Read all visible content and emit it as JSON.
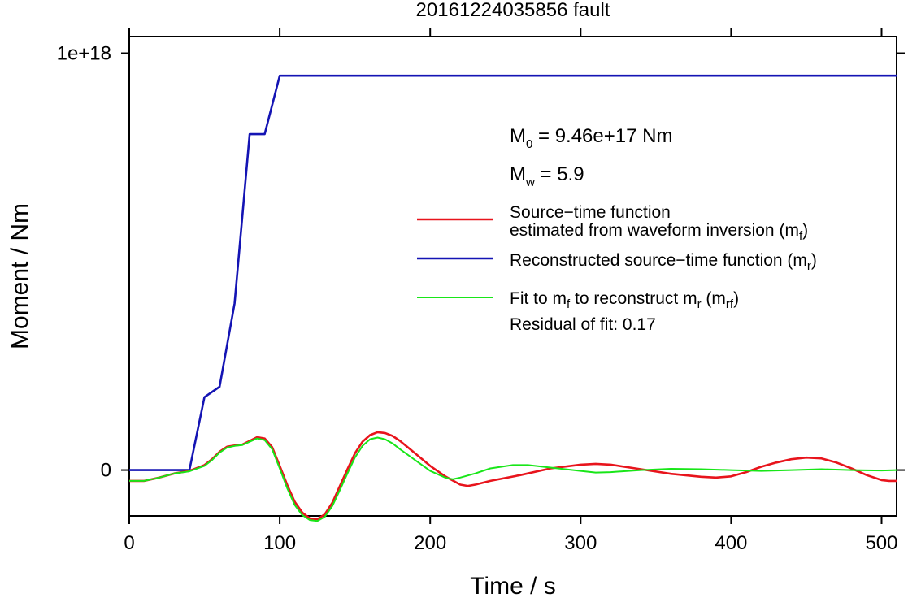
{
  "chart_data": {
    "type": "line",
    "title": "20161224035856 fault",
    "xlabel": "Time / s",
    "ylabel": "Moment / Nm",
    "xlim": [
      0,
      510
    ],
    "ylim": [
      -1.1e+17,
      1.04e+18
    ],
    "x_ticks": [
      0,
      100,
      200,
      300,
      400,
      500
    ],
    "y_ticks": [
      0,
      1e+18
    ],
    "x_tick_labels": [
      "0",
      "100",
      "200",
      "300",
      "400",
      "500"
    ],
    "y_tick_labels": [
      "0",
      "1e+18"
    ],
    "grid": false,
    "legend_position": "right",
    "annotations": {
      "m0": {
        "main": "M",
        "sub": "0",
        "rest": " = 9.46e+17 Nm"
      },
      "mw": {
        "main": "M",
        "sub": "w",
        "rest": " = 5.9"
      },
      "residual": "Residual of fit: 0.17"
    },
    "series": [
      {
        "id": "mf",
        "color": "#e8141c",
        "legend": {
          "line1": "Source−time function",
          "line2_pre": "estimated from waveform inversion (m",
          "line2_sub": "f",
          "line2_post": ")"
        },
        "points": [
          [
            0,
            -2.6e+16
          ],
          [
            10,
            -2.6e+16
          ],
          [
            20,
            -1.8e+16
          ],
          [
            30,
            -8000000000000000.0
          ],
          [
            40,
            -2000000000000000.0
          ],
          [
            50,
            1.2e+16
          ],
          [
            55,
            2.6e+16
          ],
          [
            60,
            4.4e+16
          ],
          [
            65,
            5.6e+16
          ],
          [
            70,
            5.9e+16
          ],
          [
            75,
            6.1e+16
          ],
          [
            80,
            7e+16
          ],
          [
            85,
            7.9e+16
          ],
          [
            90,
            7.6e+16
          ],
          [
            95,
            5.5e+16
          ],
          [
            100,
            1e+16
          ],
          [
            105,
            -3.6e+16
          ],
          [
            110,
            -7.6e+16
          ],
          [
            115,
            -1.02e+17
          ],
          [
            120,
            -1.16e+17
          ],
          [
            125,
            -1.18e+17
          ],
          [
            130,
            -1.06e+17
          ],
          [
            135,
            -7.8e+16
          ],
          [
            140,
            -3.8e+16
          ],
          [
            145,
            2000000000000000.0
          ],
          [
            150,
            4e+16
          ],
          [
            155,
            6.8e+16
          ],
          [
            160,
            8.4e+16
          ],
          [
            165,
            9.1e+16
          ],
          [
            170,
            8.9e+16
          ],
          [
            175,
            8.2e+16
          ],
          [
            180,
            7e+16
          ],
          [
            190,
            4e+16
          ],
          [
            200,
            1e+16
          ],
          [
            210,
            -1.5e+16
          ],
          [
            220,
            -3.5e+16
          ],
          [
            225,
            -3.8e+16
          ],
          [
            230,
            -3.5e+16
          ],
          [
            240,
            -2.6e+16
          ],
          [
            260,
            -1.2e+16
          ],
          [
            280,
            4000000000000000.0
          ],
          [
            300,
            1.3e+16
          ],
          [
            310,
            1.5e+16
          ],
          [
            320,
            1.3e+16
          ],
          [
            340,
            2000000000000000.0
          ],
          [
            360,
            -9000000000000000.0
          ],
          [
            380,
            -1.6e+16
          ],
          [
            390,
            -1.8e+16
          ],
          [
            400,
            -1.5e+16
          ],
          [
            410,
            -5000000000000000.0
          ],
          [
            420,
            8000000000000000.0
          ],
          [
            430,
            1.8e+16
          ],
          [
            440,
            2.6e+16
          ],
          [
            450,
            3e+16
          ],
          [
            460,
            2.8e+16
          ],
          [
            470,
            1.8e+16
          ],
          [
            480,
            4000000000000000.0
          ],
          [
            490,
            -1.2e+16
          ],
          [
            500,
            -2.4e+16
          ],
          [
            505,
            -2.6e+16
          ],
          [
            510,
            -2.6e+16
          ]
        ]
      },
      {
        "id": "mr",
        "color": "#1414b4",
        "legend": {
          "line1_pre": "Reconstructed source−time function (m",
          "line1_sub": "r",
          "line1_post": ")"
        },
        "points": [
          [
            0,
            0
          ],
          [
            40,
            0
          ],
          [
            50,
            1.75e+17
          ],
          [
            60,
            2e+17
          ],
          [
            70,
            4e+17
          ],
          [
            80,
            8.06e+17
          ],
          [
            90,
            8.06e+17
          ],
          [
            100,
            9.46e+17
          ],
          [
            510,
            9.46e+17
          ]
        ]
      },
      {
        "id": "mrf",
        "color": "#18e618",
        "legend": {
          "line1_pre": "Fit to m",
          "line1_sub1": "f",
          "line1_mid": " to reconstruct m",
          "line1_sub2": "r",
          "line1_mid2": " (m",
          "line1_sub3": "rf",
          "line1_post": ")"
        },
        "points": [
          [
            0,
            -2.6e+16
          ],
          [
            10,
            -2.6e+16
          ],
          [
            20,
            -1.8e+16
          ],
          [
            30,
            -8000000000000000.0
          ],
          [
            40,
            -3000000000000000.0
          ],
          [
            50,
            1e+16
          ],
          [
            55,
            2.4e+16
          ],
          [
            60,
            4.2e+16
          ],
          [
            65,
            5.4e+16
          ],
          [
            70,
            5.8e+16
          ],
          [
            75,
            6e+16
          ],
          [
            80,
            6.8e+16
          ],
          [
            85,
            7.6e+16
          ],
          [
            90,
            7.2e+16
          ],
          [
            95,
            5e+16
          ],
          [
            100,
            4000000000000000.0
          ],
          [
            105,
            -4.4e+16
          ],
          [
            110,
            -8.4e+16
          ],
          [
            115,
            -1.08e+17
          ],
          [
            120,
            -1.2e+17
          ],
          [
            125,
            -1.22e+17
          ],
          [
            130,
            -1.12e+17
          ],
          [
            135,
            -8.6e+16
          ],
          [
            140,
            -4.8e+16
          ],
          [
            145,
            -8000000000000000.0
          ],
          [
            150,
            3e+16
          ],
          [
            155,
            5.8e+16
          ],
          [
            160,
            7.4e+16
          ],
          [
            165,
            7.8e+16
          ],
          [
            170,
            7.4e+16
          ],
          [
            175,
            6.4e+16
          ],
          [
            180,
            5e+16
          ],
          [
            190,
            2.4e+16
          ],
          [
            200,
            -2000000000000000.0
          ],
          [
            210,
            -1.8e+16
          ],
          [
            215,
            -2.2e+16
          ],
          [
            220,
            -1.8e+16
          ],
          [
            230,
            -8000000000000000.0
          ],
          [
            240,
            4000000000000000.0
          ],
          [
            255,
            1.2e+16
          ],
          [
            265,
            1.2e+16
          ],
          [
            280,
            6000000000000000.0
          ],
          [
            300,
            -2000000000000000.0
          ],
          [
            310,
            -6000000000000000.0
          ],
          [
            320,
            -5000000000000000.0
          ],
          [
            340,
            0
          ],
          [
            360,
            3000000000000000.0
          ],
          [
            380,
            2000000000000000.0
          ],
          [
            400,
            0
          ],
          [
            420,
            -2000000000000000.0
          ],
          [
            440,
            0
          ],
          [
            460,
            2000000000000000.0
          ],
          [
            480,
            0
          ],
          [
            500,
            -1000000000000000.0
          ],
          [
            510,
            0
          ]
        ]
      }
    ]
  }
}
